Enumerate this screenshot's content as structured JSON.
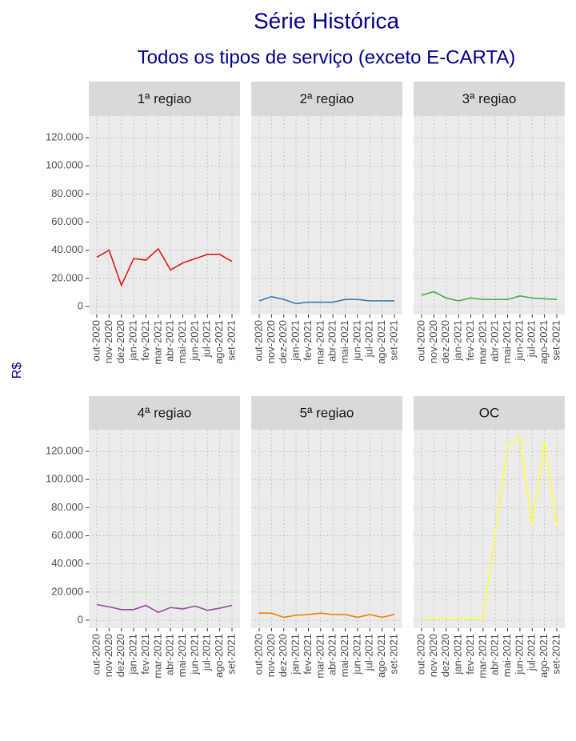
{
  "header": {
    "title": "Série Histórica",
    "subtitle": "Todos os tipos de serviço (exceto E-CARTA)",
    "y_label": "R$"
  },
  "chart_data": [
    {
      "type": "line",
      "title": "1ª regiao",
      "color": "#e41a1c",
      "categories": [
        "out-2020",
        "nov-2020",
        "dez-2020",
        "jan-2021",
        "fev-2021",
        "mar-2021",
        "abr-2021",
        "mai-2021",
        "jun-2021",
        "jul-2021",
        "ago-2021",
        "set-2021"
      ],
      "values": [
        35000,
        40000,
        15000,
        34000,
        33000,
        41000,
        26000,
        31000,
        34000,
        37000,
        37000,
        32000
      ],
      "ylim": [
        -5700,
        135400
      ],
      "yticks": [
        0,
        {
          "value": 20000,
          "label": "20.000"
        },
        {
          "value": 40000,
          "label": "40.000"
        },
        {
          "value": 60000,
          "label": "60.000"
        },
        {
          "value": 80000,
          "label": "80.000"
        },
        {
          "value": 100000,
          "label": "100.000"
        },
        {
          "value": 120000,
          "label": "120.000"
        }
      ]
    },
    {
      "type": "line",
      "title": "2ª regiao",
      "color": "#377eb8",
      "categories": [
        "out-2020",
        "nov-2020",
        "dez-2020",
        "jan-2021",
        "fev-2021",
        "mar-2021",
        "abr-2021",
        "mai-2021",
        "jun-2021",
        "jul-2021",
        "ago-2021",
        "set-2021"
      ],
      "values": [
        4000,
        7000,
        5000,
        2000,
        3000,
        3000,
        3000,
        5000,
        5000,
        4000,
        4000,
        4000
      ],
      "ylim": [
        -5700,
        135400
      ],
      "yticks": [
        0,
        20000,
        40000,
        60000,
        80000,
        100000,
        120000
      ]
    },
    {
      "type": "line",
      "title": "3ª regiao",
      "color": "#4daf4a",
      "categories": [
        "out-2020",
        "nov-2020",
        "dez-2020",
        "jan-2021",
        "fev-2021",
        "mar-2021",
        "abr-2021",
        "mai-2021",
        "jun-2021",
        "jul-2021",
        "ago-2021",
        "set-2021"
      ],
      "values": [
        8000,
        10500,
        6000,
        4000,
        6000,
        5000,
        5000,
        5000,
        7500,
        6000,
        5500,
        5000
      ],
      "ylim": [
        -5700,
        135400
      ],
      "yticks": [
        0,
        20000,
        40000,
        60000,
        80000,
        100000,
        120000
      ]
    },
    {
      "type": "line",
      "title": "4ª regiao",
      "color": "#984ea3",
      "categories": [
        "out-2020",
        "nov-2020",
        "dez-2020",
        "jan-2021",
        "fev-2021",
        "mar-2021",
        "abr-2021",
        "mai-2021",
        "jun-2021",
        "jul-2021",
        "ago-2021",
        "set-2021"
      ],
      "values": [
        11000,
        9500,
        7500,
        7500,
        10500,
        5500,
        9000,
        8000,
        10000,
        7000,
        8500,
        10500
      ],
      "ylim": [
        -5700,
        135400
      ],
      "yticks": [
        0,
        {
          "value": 20000,
          "label": "20.000"
        },
        {
          "value": 40000,
          "label": "40.000"
        },
        {
          "value": 60000,
          "label": "60.000"
        },
        {
          "value": 80000,
          "label": "80.000"
        },
        {
          "value": 100000,
          "label": "100.000"
        },
        {
          "value": 120000,
          "label": "120.000"
        }
      ]
    },
    {
      "type": "line",
      "title": "5ª regiao",
      "color": "#ff7f00",
      "categories": [
        "out-2020",
        "nov-2020",
        "dez-2020",
        "jan-2021",
        "fev-2021",
        "mar-2021",
        "abr-2021",
        "mai-2021",
        "jun-2021",
        "jul-2021",
        "ago-2021",
        "set-2021"
      ],
      "values": [
        5000,
        5000,
        2000,
        3500,
        4000,
        5000,
        4000,
        4000,
        2000,
        4000,
        2000,
        4000
      ],
      "ylim": [
        -5700,
        135400
      ],
      "yticks": [
        0,
        20000,
        40000,
        60000,
        80000,
        100000,
        120000
      ]
    },
    {
      "type": "line",
      "title": "OC",
      "color": "#ffff33",
      "categories": [
        "out-2020",
        "nov-2020",
        "dez-2020",
        "jan-2021",
        "fev-2021",
        "mar-2021",
        "abr-2021",
        "mai-2021",
        "jun-2021",
        "jul-2021",
        "ago-2021",
        "set-2021"
      ],
      "values": [
        1000,
        1000,
        1000,
        1000,
        1500,
        500,
        62000,
        125000,
        130000,
        68000,
        127000,
        67000
      ],
      "ylim": [
        -5700,
        135400
      ],
      "yticks": [
        0,
        20000,
        40000,
        60000,
        80000,
        100000,
        120000
      ]
    }
  ]
}
